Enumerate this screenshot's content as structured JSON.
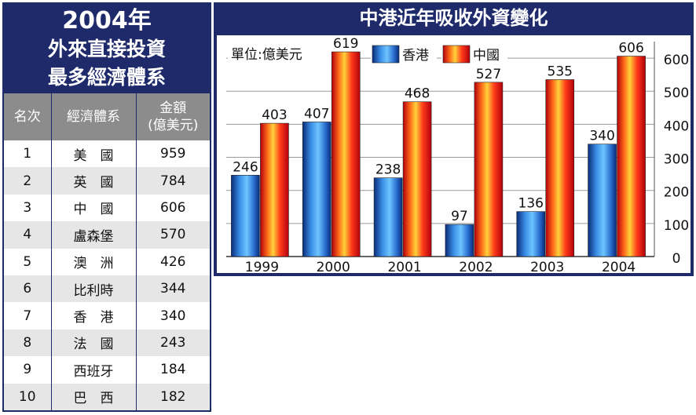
{
  "ranking": {
    "title_line1": "2004年",
    "title_line2": "外來直接投資",
    "title_line3": "最多經濟體系",
    "headers": {
      "rank": "名次",
      "economy": "經濟體系",
      "amount_line1": "金額",
      "amount_line2": "(億美元)"
    },
    "rows": [
      {
        "rank": "1",
        "economy": "美　國",
        "amount": "959"
      },
      {
        "rank": "2",
        "economy": "英　國",
        "amount": "784"
      },
      {
        "rank": "3",
        "economy": "中　國",
        "amount": "606"
      },
      {
        "rank": "4",
        "economy": "盧森堡",
        "amount": "570"
      },
      {
        "rank": "5",
        "economy": "澳　洲",
        "amount": "426"
      },
      {
        "rank": "6",
        "economy": "比利時",
        "amount": "344"
      },
      {
        "rank": "7",
        "economy": "香　港",
        "amount": "340"
      },
      {
        "rank": "8",
        "economy": "法　國",
        "amount": "243"
      },
      {
        "rank": "9",
        "economy": "西班牙",
        "amount": "184"
      },
      {
        "rank": "10",
        "economy": "巴　西",
        "amount": "182"
      }
    ]
  },
  "chart_data": {
    "type": "bar",
    "title": "中港近年吸收外資變化",
    "unit_label": "單位:億美元",
    "categories": [
      "1999",
      "2000",
      "2001",
      "2002",
      "2003",
      "2004"
    ],
    "series": [
      {
        "name": "香港",
        "color": "#1f5fc0",
        "values": [
          246,
          407,
          238,
          97,
          136,
          340
        ]
      },
      {
        "name": "中國",
        "color": "#d8161b",
        "values": [
          403,
          619,
          468,
          527,
          535,
          606
        ]
      }
    ],
    "ylim": [
      0,
      650
    ],
    "yticks": [
      "0",
      "100",
      "200",
      "300",
      "400",
      "500",
      "600"
    ],
    "grid": true,
    "legend_position": "top"
  }
}
